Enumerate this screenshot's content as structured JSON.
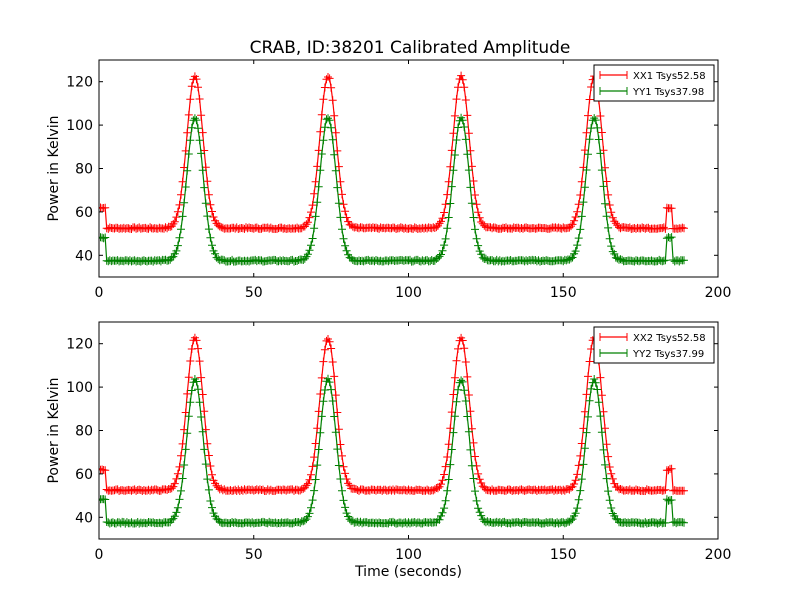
{
  "title": "CRAB, ID:38201 Calibrated Amplitude",
  "chart_data": [
    {
      "type": "line",
      "title": "CRAB, ID:38201 Calibrated Amplitude",
      "xlabel": "",
      "ylabel": "Power in Kelvin",
      "xlim": [
        0,
        200
      ],
      "ylim": [
        30,
        130
      ],
      "xticks": [
        "0",
        "50",
        "100",
        "150",
        "200"
      ],
      "yticks": [
        "40",
        "60",
        "80",
        "100",
        "120"
      ],
      "legend_position": "top-right",
      "series": [
        {
          "name": "XX1 Tsys52.58",
          "color": "#ff0000",
          "marker": "+",
          "baseline": 52.5,
          "peak": 122.5,
          "step_level": 62
        },
        {
          "name": "YY1 Tsys37.98",
          "color": "#008000",
          "marker": "+",
          "baseline": 37.5,
          "peak": 103.5,
          "step_level": 48
        }
      ],
      "peak_times": [
        31,
        74,
        117,
        160
      ],
      "peak_width_sigma": 2.6,
      "time_end": 189
    },
    {
      "type": "line",
      "title": "",
      "xlabel": "Time (seconds)",
      "ylabel": "Power in Kelvin",
      "xlim": [
        0,
        200
      ],
      "ylim": [
        30,
        130
      ],
      "xticks": [
        "0",
        "50",
        "100",
        "150",
        "200"
      ],
      "yticks": [
        "40",
        "60",
        "80",
        "100",
        "120"
      ],
      "legend_position": "top-right",
      "series": [
        {
          "name": "XX2 Tsys52.58",
          "color": "#ff0000",
          "marker": "+",
          "baseline": 52.5,
          "peak": 122.5,
          "step_level": 62
        },
        {
          "name": "YY2 Tsys37.99",
          "color": "#008000",
          "marker": "+",
          "baseline": 37.5,
          "peak": 103.5,
          "step_level": 48
        }
      ],
      "peak_times": [
        31,
        74,
        117,
        160
      ],
      "peak_width_sigma": 2.6,
      "time_end": 189
    }
  ]
}
